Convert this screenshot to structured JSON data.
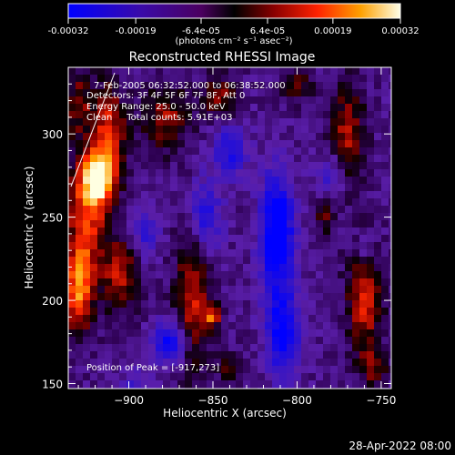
{
  "colorbar": {
    "tick_labels": [
      "-0.00032",
      "-0.00019",
      "-6.4e-05",
      "6.4e-05",
      "0.00019",
      "0.00032"
    ],
    "tick_values": [
      -0.00032,
      -0.00019,
      -6.4e-05,
      6.4e-05,
      0.00019,
      0.00032
    ],
    "range": [
      -0.00032,
      0.00032
    ],
    "units_label": "(photons cm⁻² s⁻¹ asec⁻²)"
  },
  "chart_data": {
    "type": "heatmap",
    "title": "Reconstructed RHESSI Image",
    "xlabel": "Heliocentric X (arcsec)",
    "ylabel": "Heliocentric Y (arcsec)",
    "xlim": [
      -936,
      -744
    ],
    "ylim": [
      147,
      340
    ],
    "x_ticks": [
      -900,
      -850,
      -800,
      -750
    ],
    "x_tick_labels": [
      "−900",
      "−850",
      "−800",
      "−750"
    ],
    "y_ticks": [
      150,
      200,
      250,
      300
    ],
    "y_tick_labels": [
      "150",
      "200",
      "250",
      "300"
    ],
    "peak_position": [
      -917,
      273
    ],
    "colormap": [
      "#0000ff",
      "#4b0082",
      "#7a36c4",
      "#000000",
      "#7a0000",
      "#ff2000",
      "#ffa000",
      "#ffffe0"
    ],
    "annotations": {
      "time_range": "7-Feb-2005 06:32:52.000 to 06:38:52.000",
      "detectors": "Detectors: 3F 4F 5F 6F 7F 8F, Att 0",
      "energy_range": "Energy Range: 25.0 - 50.0 keV",
      "clean": "Clean     Total counts: 5.91E+03",
      "peak": "Position of Peak = [-917,273]"
    }
  },
  "footer": {
    "timestamp": "28-Apr-2022 08:00"
  }
}
